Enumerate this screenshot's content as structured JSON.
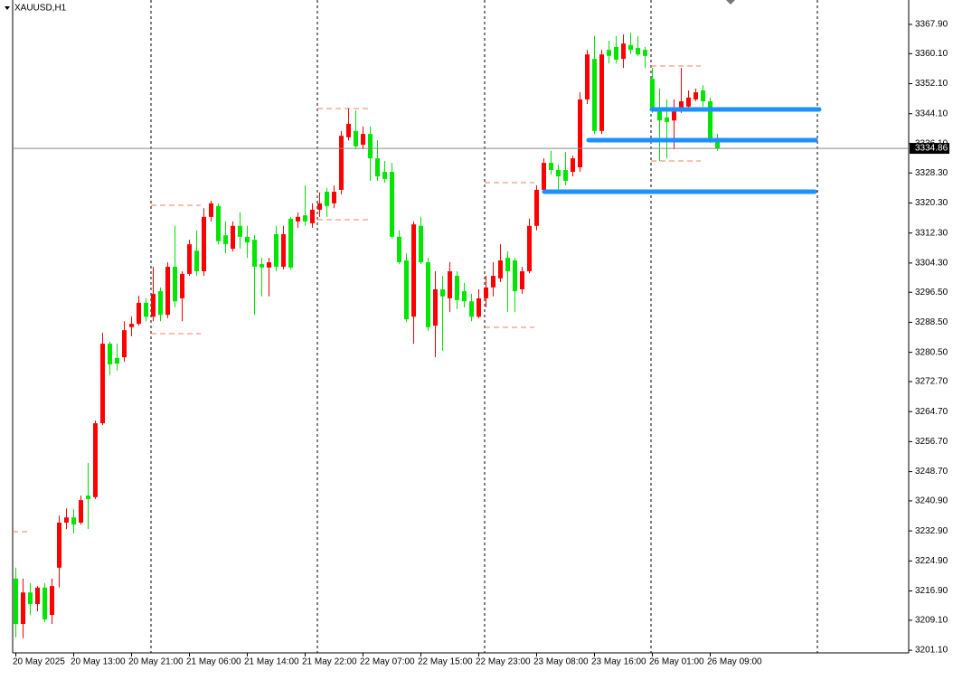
{
  "chart_data": {
    "type": "candlestick",
    "title": "XAUUSD,H1",
    "up_color": "#ff0000",
    "down_color": "#00e600",
    "categories": [
      "20 May 2025",
      null,
      null,
      null,
      null,
      null,
      null,
      null,
      "20 May 13:00",
      null,
      null,
      null,
      null,
      null,
      null,
      null,
      "20 May 21:00",
      null,
      null,
      null,
      null,
      null,
      null,
      null,
      "21 May 06:00",
      null,
      null,
      null,
      null,
      null,
      null,
      null,
      "21 May 14:00",
      null,
      null,
      null,
      null,
      null,
      null,
      null,
      "21 May 22:00",
      null,
      null,
      null,
      null,
      null,
      null,
      null,
      "22 May 07:00",
      null,
      null,
      null,
      null,
      null,
      null,
      null,
      "22 May 15:00",
      null,
      null,
      null,
      null,
      null,
      null,
      null,
      "22 May 23:00",
      null,
      null,
      null,
      null,
      null,
      null,
      null,
      "23 May 08:00",
      null,
      null,
      null,
      null,
      null,
      null,
      null,
      "23 May 16:00",
      null,
      null,
      null,
      null,
      null,
      null,
      null,
      "26 May 01:00",
      null,
      null,
      null,
      null,
      null,
      null,
      null,
      "26 May 09:00",
      null
    ],
    "open": [
      3220.2,
      3208.1,
      3216.5,
      3213.4,
      3217.8,
      3210.5,
      3223.1,
      3235.1,
      3236.5,
      3235.1,
      3242.3,
      3241.9,
      3261.6,
      3282.8,
      3279.0,
      3279.2,
      3287.2,
      3288.1,
      3293.7,
      3290.0,
      3296.8,
      3290.5,
      3303.3,
      3294.9,
      3301.4,
      3307.6,
      3302.1,
      3316.6,
      3319.5,
      3311.7,
      3308.1,
      3314.2,
      3311.3,
      3310.5,
      3304.0,
      3303.1,
      3312.0,
      3303.3,
      3316.1,
      3315.4,
      3317.0,
      3314.9,
      3318.5,
      3323.3,
      3320.2,
      3323.8,
      3337.8,
      3339.5,
      3335.8,
      3338.7,
      3332.2,
      3328.6,
      3328.6,
      3311.3,
      3305.0,
      3290.0,
      3314.2,
      3304.5,
      3287.6,
      3297.3,
      3294.9,
      3300.9,
      3296.8,
      3294.1,
      3290.0,
      3294.9,
      3297.8,
      3300.2,
      3305.7,
      3305.0,
      3297.3,
      3302.1,
      3314.2,
      3323.8,
      3331.0,
      3329.1,
      3329.1,
      3328.6,
      3329.8,
      3347.9,
      3358.7,
      3339.5,
      3361.1,
      3361.9,
      3358.7,
      3362.4,
      3361.6,
      3361.1,
      3353.4,
      3345.5,
      3343.1,
      3342.3,
      3345.5,
      3346.0,
      3347.9,
      3350.3,
      3347.4,
      3337.0
    ],
    "high": [
      3223.1,
      3220.2,
      3219.0,
      3218.2,
      3219.0,
      3220.2,
      3237.0,
      3238.9,
      3238.7,
      3242.3,
      3251.0,
      3262.3,
      3285.7,
      3283.3,
      3282.8,
      3288.8,
      3290.0,
      3295.6,
      3294.9,
      3303.3,
      3297.8,
      3304.5,
      3314.2,
      3302.1,
      3310.5,
      3313.0,
      3318.9,
      3320.9,
      3320.2,
      3315.4,
      3315.4,
      3317.8,
      3314.2,
      3311.7,
      3305.7,
      3305.7,
      3314.2,
      3314.2,
      3316.6,
      3317.8,
      3325.0,
      3320.2,
      3323.1,
      3324.3,
      3325.0,
      3339.5,
      3345.5,
      3345.0,
      3340.7,
      3340.7,
      3337.0,
      3331.5,
      3331.0,
      3313.0,
      3306.9,
      3315.4,
      3316.6,
      3305.7,
      3302.1,
      3300.9,
      3304.5,
      3302.1,
      3299.0,
      3296.1,
      3297.3,
      3300.9,
      3304.5,
      3309.3,
      3307.4,
      3305.7,
      3303.3,
      3316.1,
      3325.0,
      3332.2,
      3334.2,
      3330.5,
      3333.9,
      3332.9,
      3349.8,
      3361.1,
      3364.8,
      3361.1,
      3363.6,
      3364.8,
      3365.2,
      3365.7,
      3364.8,
      3361.9,
      3356.3,
      3350.8,
      3347.9,
      3347.9,
      3356.3,
      3350.3,
      3350.8,
      3351.7,
      3348.4,
      3338.7
    ],
    "low": [
      3204.5,
      3204.3,
      3210.5,
      3211.5,
      3208.6,
      3208.1,
      3217.8,
      3233.4,
      3232.2,
      3234.6,
      3233.4,
      3241.4,
      3261.1,
      3274.4,
      3275.6,
      3278.0,
      3284.8,
      3287.6,
      3288.8,
      3288.8,
      3288.8,
      3289.6,
      3292.5,
      3288.8,
      3300.9,
      3300.9,
      3300.9,
      3315.4,
      3309.3,
      3306.9,
      3307.4,
      3308.1,
      3305.7,
      3290.5,
      3295.4,
      3295.4,
      3302.1,
      3302.6,
      3302.6,
      3313.7,
      3314.2,
      3313.7,
      3316.6,
      3316.6,
      3318.9,
      3322.6,
      3337.0,
      3334.6,
      3334.6,
      3326.2,
      3326.2,
      3325.7,
      3310.8,
      3304.0,
      3288.6,
      3282.8,
      3304.0,
      3286.2,
      3279.2,
      3280.9,
      3291.3,
      3292.0,
      3292.5,
      3288.8,
      3289.6,
      3292.5,
      3295.4,
      3299.2,
      3291.3,
      3291.3,
      3296.1,
      3301.6,
      3313.0,
      3323.3,
      3327.9,
      3323.8,
      3325.0,
      3327.4,
      3328.6,
      3346.7,
      3338.7,
      3338.7,
      3357.5,
      3357.5,
      3356.3,
      3359.9,
      3359.5,
      3356.3,
      3344.3,
      3331.5,
      3332.2,
      3334.6,
      3344.3,
      3345.0,
      3347.4,
      3346.0,
      3336.3,
      3334.2
    ],
    "close": [
      3208.1,
      3216.5,
      3213.4,
      3217.8,
      3209.3,
      3218.2,
      3235.1,
      3236.5,
      3234.6,
      3241.1,
      3241.4,
      3261.6,
      3282.8,
      3277.3,
      3277.5,
      3286.4,
      3288.1,
      3293.7,
      3290.0,
      3296.1,
      3290.5,
      3303.3,
      3294.1,
      3301.4,
      3309.3,
      3302.1,
      3316.6,
      3320.2,
      3310.1,
      3309.3,
      3314.2,
      3311.3,
      3309.8,
      3303.3,
      3303.1,
      3304.5,
      3303.3,
      3312.0,
      3303.1,
      3316.6,
      3315.4,
      3318.5,
      3320.2,
      3319.5,
      3323.3,
      3338.2,
      3341.4,
      3335.4,
      3338.7,
      3332.2,
      3327.4,
      3326.7,
      3311.3,
      3304.5,
      3289.3,
      3314.6,
      3304.5,
      3287.2,
      3297.3,
      3295.4,
      3302.1,
      3294.4,
      3294.1,
      3290.0,
      3294.9,
      3297.8,
      3300.9,
      3305.0,
      3302.1,
      3296.8,
      3302.1,
      3314.2,
      3323.8,
      3331.0,
      3329.1,
      3327.4,
      3326.2,
      3332.2,
      3347.9,
      3359.9,
      3339.5,
      3359.9,
      3359.5,
      3358.5,
      3362.8,
      3361.1,
      3359.9,
      3359.5,
      3345.5,
      3342.3,
      3341.9,
      3345.5,
      3347.4,
      3348.4,
      3349.8,
      3347.4,
      3337.0,
      3334.86
    ],
    "current_price": 3334.86,
    "ylim": [
      3200.4,
      3374.4
    ],
    "yticks": [
      {
        "value": 3367.9,
        "label": "3367.90"
      },
      {
        "value": 3360.1,
        "label": "3360.10"
      },
      {
        "value": 3352.1,
        "label": "3352.10"
      },
      {
        "value": 3344.1,
        "label": "3344.10"
      },
      {
        "value": 3336.1,
        "label": "3336.10"
      },
      {
        "value": 3328.3,
        "label": "3328.30"
      },
      {
        "value": 3320.3,
        "label": "3320.30"
      },
      {
        "value": 3312.3,
        "label": "3312.30"
      },
      {
        "value": 3304.3,
        "label": "3304.30"
      },
      {
        "value": 3296.5,
        "label": "3296.50"
      },
      {
        "value": 3288.5,
        "label": "3288.50"
      },
      {
        "value": 3280.5,
        "label": "3280.50"
      },
      {
        "value": 3272.7,
        "label": "3272.70"
      },
      {
        "value": 3264.7,
        "label": "3264.70"
      },
      {
        "value": 3256.7,
        "label": "3256.70"
      },
      {
        "value": 3248.7,
        "label": "3248.70"
      },
      {
        "value": 3240.9,
        "label": "3240.90"
      },
      {
        "value": 3232.9,
        "label": "3232.90"
      },
      {
        "value": 3224.9,
        "label": "3224.90"
      },
      {
        "value": 3216.9,
        "label": "3216.90"
      },
      {
        "value": 3209.1,
        "label": "3209.10"
      },
      {
        "value": 3201.1,
        "label": "3201.10"
      }
    ]
  }
}
